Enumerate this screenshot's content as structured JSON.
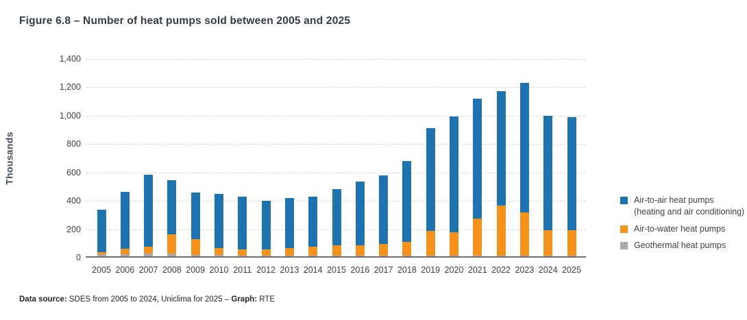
{
  "figure": {
    "title": "Figure 6.8 – Number of heat pumps sold between 2005 and 2025",
    "footer_parts": [
      {
        "text": "Data source:",
        "bold": true
      },
      {
        "text": " SDES from 2005 to 2024, Uniclima for 2025 – ",
        "bold": false
      },
      {
        "text": "Graph:",
        "bold": true
      },
      {
        "text": " RTE",
        "bold": false
      }
    ]
  },
  "chart_data": {
    "type": "bar",
    "stacked": true,
    "title": "Figure 6.8 – Number of heat pumps sold between 2005 and 2025",
    "xlabel": "",
    "ylabel": "Thousands",
    "ylim": [
      0,
      1400
    ],
    "grid": "horizontal-dashed",
    "legend_position": "right",
    "yticks": [
      {
        "value": 0,
        "label": "0"
      },
      {
        "value": 200,
        "label": "200"
      },
      {
        "value": 400,
        "label": "400"
      },
      {
        "value": 600,
        "label": "600"
      },
      {
        "value": 800,
        "label": "800"
      },
      {
        "value": 1000,
        "label": "1,000"
      },
      {
        "value": 1200,
        "label": "1,200"
      },
      {
        "value": 1400,
        "label": "1,400"
      }
    ],
    "categories": [
      "2005",
      "2006",
      "2007",
      "2008",
      "2009",
      "2010",
      "2011",
      "2012",
      "2013",
      "2014",
      "2015",
      "2016",
      "2017",
      "2018",
      "2019",
      "2020",
      "2021",
      "2022",
      "2023",
      "2024",
      "2025"
    ],
    "series": [
      {
        "name": "Geothermal heat pumps",
        "color": "#aea7a7",
        "values": [
          15,
          15,
          20,
          20,
          10,
          10,
          5,
          5,
          5,
          5,
          5,
          5,
          5,
          5,
          5,
          5,
          5,
          5,
          5,
          5,
          5
        ]
      },
      {
        "name": "Air-to-water heat pumps",
        "color": "#f5921e",
        "values": [
          15,
          40,
          50,
          135,
          110,
          50,
          45,
          45,
          55,
          65,
          70,
          70,
          80,
          95,
          175,
          165,
          260,
          350,
          305,
          180,
          180
        ]
      },
      {
        "name": "Air-to-air heat pumps (heating and air conditioning)",
        "color": "#1e73af",
        "values": [
          300,
          400,
          505,
          380,
          330,
          380,
          370,
          340,
          350,
          350,
          400,
          450,
          485,
          570,
          725,
          815,
          845,
          810,
          910,
          805,
          795
        ]
      }
    ]
  },
  "legend": {
    "items": [
      {
        "label": "Air-to-air heat pumps (heating and air conditioning)",
        "color": "#1e73af"
      },
      {
        "label": "Air-to-water heat pumps",
        "color": "#f5921e"
      },
      {
        "label": "Geothermal heat pumps",
        "color": "#aea7a7"
      }
    ]
  }
}
